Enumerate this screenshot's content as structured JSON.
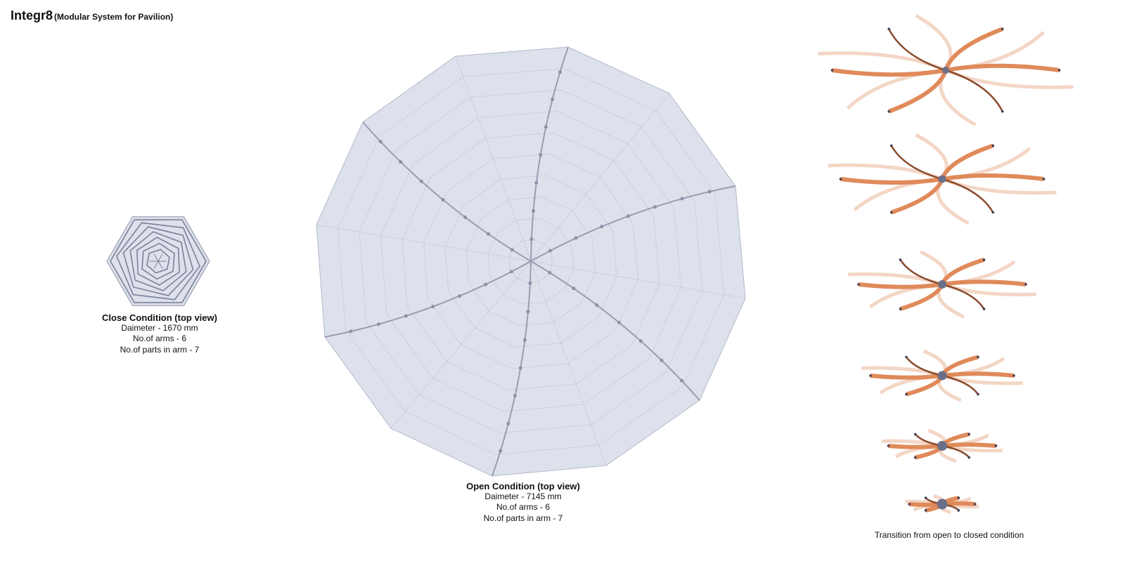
{
  "header": {
    "title": "Integr8",
    "subtitle": "(Modular System for Pavilion)"
  },
  "close_condition": {
    "title": "Close Condition (top view)",
    "lines": [
      "Daimeter - 1670 mm",
      "No.of arms - 6",
      "No.of parts in arm - 7"
    ]
  },
  "open_condition": {
    "title": "Open Condition (top view)",
    "lines": [
      "Daimeter - 7145 mm",
      "No.of arms - 6",
      "No.of parts in arm - 7"
    ]
  },
  "transition": {
    "caption": "Transition from open to closed condition"
  }
}
